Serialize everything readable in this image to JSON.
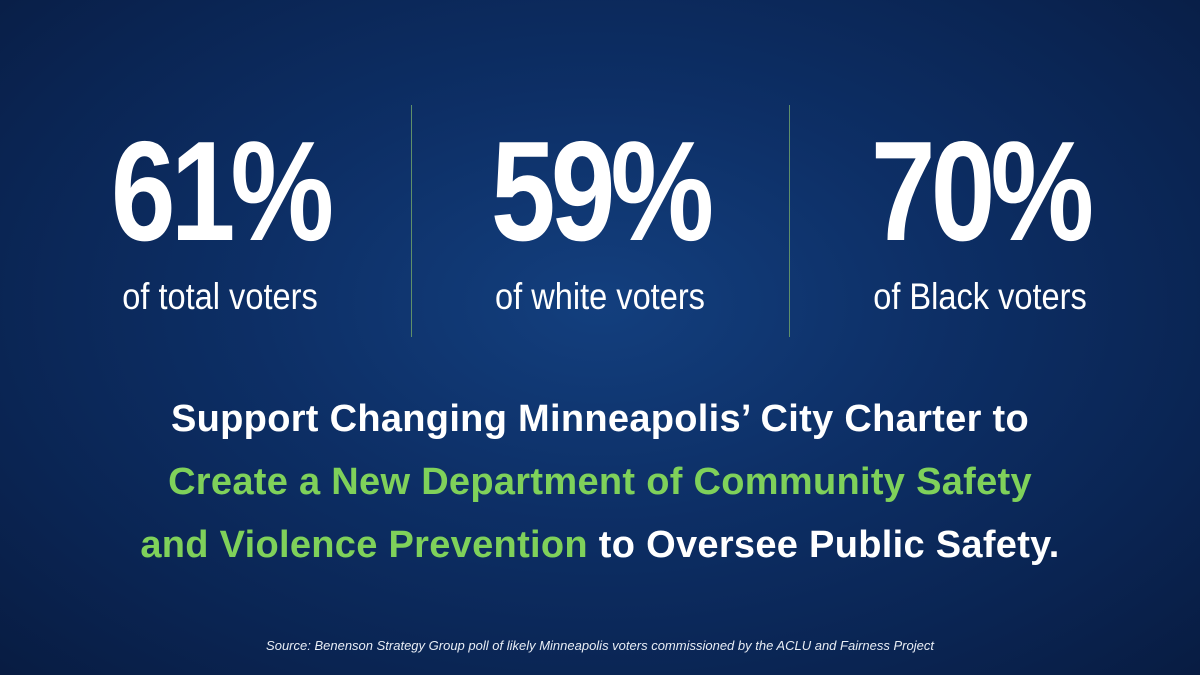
{
  "stats": [
    {
      "value": "61%",
      "label": "of total voters"
    },
    {
      "value": "59%",
      "label": "of white voters"
    },
    {
      "value": "70%",
      "label": "of Black voters"
    }
  ],
  "headline": {
    "line1": "Support Changing Minneapolis’ City Charter to",
    "line2_green": "Create a New Department of Community Safety",
    "line3_green": "and Violence Prevention",
    "line3_rest": " to Oversee Public Safety."
  },
  "source": "Source: Benenson Strategy Group poll of likely Minneapolis voters commissioned by the ACLU and Fairness Project",
  "colors": {
    "background": "#0d2f66",
    "accent_green": "#7fd15a",
    "text": "#ffffff"
  }
}
